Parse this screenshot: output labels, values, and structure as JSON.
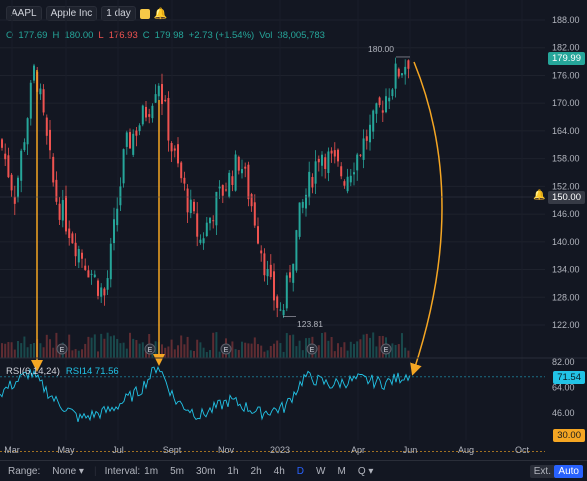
{
  "header": {
    "symbol": "AAPL",
    "name": "Apple Inc",
    "interval": "1 day"
  },
  "ohlc": {
    "o_label": "O",
    "o": "177.69",
    "h_label": "H",
    "h": "180.00",
    "l_label": "L",
    "l": "176.93",
    "c_label": "C",
    "c": "179.98",
    "change": "+2.73 (+1.54%)",
    "vol_label": "Vol",
    "vol": "38,005,783"
  },
  "price_axis": [
    "188.00",
    "182.00",
    "176.00",
    "170.00",
    "164.00",
    "158.00",
    "152.00",
    "146.00",
    "140.00",
    "134.00",
    "128.00",
    "122.00"
  ],
  "price_badge": "179.99",
  "alert_badge": "150.00",
  "high_label": "180.00",
  "low_label": "123.81",
  "rsi": {
    "title": "RSI(6,14,24)",
    "value_label": "RSI14 71.56"
  },
  "rsi_axis": [
    "82.00",
    "64.00",
    "46.00"
  ],
  "rsi_badge": "71.54",
  "rsi_low_badge": "30.00",
  "time_axis": [
    "Mar",
    "May",
    "Jul",
    "Sept",
    "Nov",
    "2023",
    "Apr",
    "Jun",
    "Aug",
    "Oct"
  ],
  "bottom": {
    "range_label": "Range:",
    "range_value": "None",
    "interval_label": "Interval:",
    "intervals": [
      "1m",
      "5m",
      "30m",
      "1h",
      "2h",
      "4h",
      "D",
      "W",
      "M",
      "Q"
    ],
    "ext": "Ext.",
    "auto": "Auto"
  },
  "colors": {
    "up": "#26a69a",
    "down": "#ef5350",
    "rsi": "#22c3e6",
    "annotation": "#f5a623"
  }
}
